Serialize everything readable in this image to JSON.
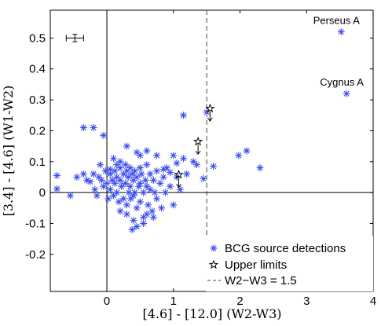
{
  "chart_data": {
    "type": "scatter",
    "xlabel": "[4.6] - [12.0]  (W2-W3)",
    "ylabel": "[3.4] - [4.6]  (W1-W2)",
    "xlim": [
      -0.85,
      4.0
    ],
    "ylim": [
      -0.32,
      0.59
    ],
    "xticks": [
      0,
      1,
      2,
      3,
      4
    ],
    "yticks": [
      -0.2,
      -0.1,
      0,
      0.1,
      0.2,
      0.3,
      0.4,
      0.5
    ],
    "grid": false,
    "legend_position": "bottom-right",
    "colors": {
      "detections": "#3b4cf0",
      "limits": "#000000",
      "threshold": "#444444"
    },
    "series": [
      {
        "name": "BCG source detections",
        "marker": "asterisk",
        "points": [
          [
            -0.75,
            0.055
          ],
          [
            -0.75,
            0.012
          ],
          [
            -0.55,
            -0.01
          ],
          [
            -0.45,
            0.05
          ],
          [
            -0.35,
            0.06
          ],
          [
            -0.3,
            0.04
          ],
          [
            -0.25,
            0.035
          ],
          [
            -0.2,
            0.06
          ],
          [
            -0.18,
            0.01
          ],
          [
            -0.15,
            -0.01
          ],
          [
            -0.12,
            0.05
          ],
          [
            -0.08,
            0.04
          ],
          [
            -0.05,
            0.02
          ],
          [
            -0.02,
            0.07
          ],
          [
            0.0,
            0.03
          ],
          [
            0.02,
            -0.02
          ],
          [
            0.05,
            0.06
          ],
          [
            0.05,
            0.01
          ],
          [
            0.08,
            0.04
          ],
          [
            0.1,
            -0.01
          ],
          [
            0.12,
            0.07
          ],
          [
            0.12,
            0.03
          ],
          [
            0.15,
            0.09
          ],
          [
            0.15,
            0.05
          ],
          [
            0.15,
            0.0
          ],
          [
            0.18,
            -0.03
          ],
          [
            0.2,
            0.08
          ],
          [
            0.2,
            0.04
          ],
          [
            0.2,
            -0.06
          ],
          [
            0.22,
            0.02
          ],
          [
            0.25,
            0.06
          ],
          [
            0.25,
            -0.02
          ],
          [
            0.28,
            0.09
          ],
          [
            0.28,
            0.03
          ],
          [
            0.3,
            0.07
          ],
          [
            0.3,
            -0.04
          ],
          [
            0.32,
            0.05
          ],
          [
            0.33,
            0.0
          ],
          [
            0.35,
            0.08
          ],
          [
            0.35,
            0.02
          ],
          [
            0.36,
            -0.02
          ],
          [
            0.38,
            0.06
          ],
          [
            0.4,
            0.04
          ],
          [
            0.4,
            -0.01
          ],
          [
            0.42,
            0.07
          ],
          [
            0.42,
            0.0
          ],
          [
            0.45,
            0.05
          ],
          [
            0.45,
            -0.05
          ],
          [
            0.48,
            0.02
          ],
          [
            0.5,
            0.08
          ],
          [
            0.5,
            0.03
          ],
          [
            0.5,
            -0.03
          ],
          [
            0.52,
            0.06
          ],
          [
            0.55,
            0.0
          ],
          [
            0.55,
            -0.08
          ],
          [
            0.58,
            0.04
          ],
          [
            0.6,
            0.09
          ],
          [
            0.6,
            0.02
          ],
          [
            0.62,
            -0.04
          ],
          [
            0.65,
            0.06
          ],
          [
            0.65,
            0.01
          ],
          [
            0.68,
            -0.06
          ],
          [
            0.7,
            0.04
          ],
          [
            0.72,
            0.0
          ],
          [
            0.75,
            0.07
          ],
          [
            0.75,
            -0.02
          ],
          [
            0.8,
            0.03
          ],
          [
            0.82,
            -0.05
          ],
          [
            0.85,
            0.05
          ],
          [
            0.88,
            0.0
          ],
          [
            0.9,
            0.08
          ],
          [
            0.95,
            0.02
          ],
          [
            1.0,
            -0.04
          ],
          [
            1.05,
            0.05
          ],
          [
            1.1,
            0.01
          ],
          [
            0.45,
            -0.11
          ],
          [
            0.4,
            -0.09
          ],
          [
            0.3,
            -0.07
          ],
          [
            0.55,
            -0.1
          ],
          [
            0.38,
            -0.12
          ],
          [
            0.6,
            -0.07
          ],
          [
            0.7,
            -0.08
          ],
          [
            -0.35,
            0.21
          ],
          [
            -0.2,
            0.21
          ],
          [
            -0.05,
            0.185
          ],
          [
            0.3,
            0.15
          ],
          [
            0.6,
            0.135
          ],
          [
            0.85,
            0.075
          ],
          [
            0.95,
            0.065
          ],
          [
            1.05,
            0.095
          ],
          [
            1.15,
            0.11
          ],
          [
            1.3,
            0.1
          ],
          [
            1.35,
            0.09
          ],
          [
            1.45,
            0.045
          ],
          [
            1.6,
            0.085
          ],
          [
            1.15,
            0.25
          ],
          [
            0.5,
            0.12
          ],
          [
            0.2,
            0.1
          ],
          [
            0.1,
            0.11
          ],
          [
            -0.1,
            0.09
          ],
          [
            0.05,
            0.075
          ],
          [
            0.45,
            0.13
          ],
          [
            0.75,
            0.12
          ],
          [
            1.0,
            0.12
          ],
          [
            1.2,
            0.06
          ],
          [
            1.5,
            0.26
          ],
          [
            1.98,
            0.12
          ],
          [
            2.1,
            0.135
          ],
          [
            2.3,
            0.08
          ],
          [
            3.52,
            0.52
          ],
          [
            3.6,
            0.32
          ]
        ]
      },
      {
        "name": "Upper limits",
        "marker": "star-with-down-arrow",
        "points": [
          [
            1.08,
            0.058
          ],
          [
            1.37,
            0.165
          ],
          [
            1.55,
            0.272
          ]
        ]
      }
    ],
    "reference_lines": [
      {
        "axis": "x",
        "value": 1.5,
        "style": "dashed",
        "label": "W2−W3 = 1.5"
      },
      {
        "axis": "x",
        "value": 0,
        "style": "solid"
      },
      {
        "axis": "y",
        "value": 0,
        "style": "solid"
      }
    ],
    "error_bar": {
      "x": -0.48,
      "y": 0.5,
      "xerr": 0.13,
      "yerr": 0.012
    },
    "annotations": [
      {
        "text": "Perseus A",
        "x": 3.52,
        "y": 0.52
      },
      {
        "text": "Cygnus A",
        "x": 3.6,
        "y": 0.32
      }
    ]
  }
}
